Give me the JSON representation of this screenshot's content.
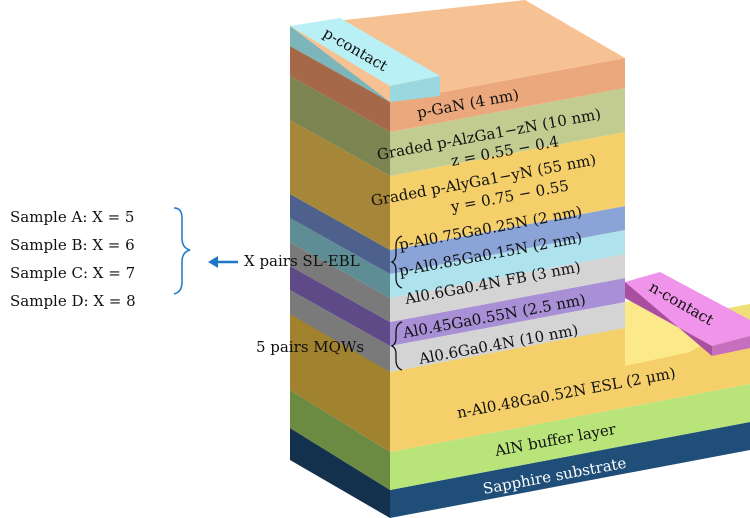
{
  "contacts": {
    "p": "p-contact",
    "n": "n-contact"
  },
  "layers": {
    "pgan": "p-GaN (4 nm)",
    "graded1": "Graded p-AlzGa1−zN (10 nm)",
    "graded1_range": "z = 0.55 − 0.4",
    "graded2": "Graded p-AlyGa1−yN (55 nm)",
    "graded2_range": "y = 0.75 − 0.55",
    "sl1": "p-Al0.75Ga0.25N (2 nm)",
    "sl2": "p-Al0.85Ga0.15N (2 nm)",
    "fb": "Al0.6Ga0.4N FB (3 nm)",
    "mqw1": "Al0.45Ga0.55N (2.5 nm)",
    "mqw2": "Al0.6Ga0.4N (10 nm)",
    "esl": "n-Al0.48Ga0.52N ESL (2 μm)",
    "buffer": "AlN buffer layer",
    "substrate": "Sapphire substrate"
  },
  "groups": {
    "sl_ebl": "X pairs SL-EBL",
    "mqws": "5 pairs MQWs"
  },
  "samples": [
    "Sample A: X = 5",
    "Sample B: X = 6",
    "Sample C: X = 7",
    "Sample D: X = 8"
  ],
  "colors": {
    "substrate": "#1f4e79",
    "buffer": "#b8e47a",
    "esl": "#f5cf6a",
    "mqw_well": "#a98fd6",
    "mqw_barrier": "#d4d4d4",
    "fb": "#d4d4d4",
    "sl1": "#8aa4d8",
    "sl2": "#aee2ec",
    "graded2": "#f5cf6a",
    "graded1": "#c3cc90",
    "pgan": "#eba87c",
    "p_contact": "#b9f0f5",
    "n_contact": "#f093ea",
    "arrow": "#1f77c8"
  }
}
